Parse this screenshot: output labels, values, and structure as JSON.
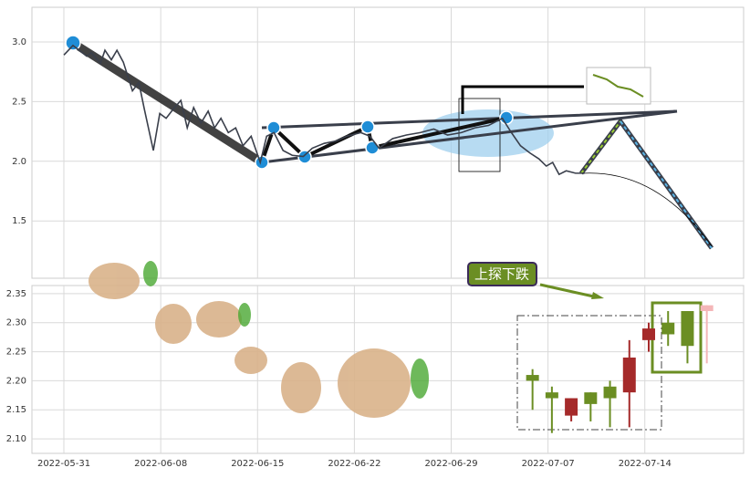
{
  "chart_data": [
    {
      "type": "line",
      "ylim": [
        1.02,
        3.29
      ],
      "yticks": [
        1.5,
        {
          "value": 2,
          "label": "2.0"
        },
        2.5,
        {
          "value": 3,
          "label": "3.0"
        }
      ],
      "grid": true,
      "series": [
        {
          "color": "#3a3f4b",
          "x": [
            0,
            0.47,
            1.18,
            1.42,
            1.89,
            2.12,
            2.45,
            2.74,
            3.07,
            3.54,
            3.87,
            4.15,
            4.62,
            4.95,
            5.28,
            5.66,
            6.04,
            6.37,
            6.7,
            7.08,
            7.45,
            7.78,
            8.11,
            8.49,
            8.87,
            9.25,
            9.67,
            10.14,
            10.47,
            10.85,
            11.32,
            11.79,
            12.36,
            12.83,
            13.44,
            14.06,
            14.62,
            15.33,
            15.8,
            16.27,
            16.98,
            17.69,
            18.4,
            19.1,
            19.81,
            20.52,
            21.23,
            21.93,
            22.64,
            23.11,
            23.58,
            24.06,
            24.53,
            24.91,
            25.24,
            25.57,
            25.94,
            26.42,
            26.89
          ],
          "values": [
            2.89,
            2.97,
            2.88,
            2.91,
            2.82,
            2.93,
            2.85,
            2.93,
            2.83,
            2.59,
            2.66,
            2.44,
            2.09,
            2.4,
            2.36,
            2.44,
            2.51,
            2.28,
            2.45,
            2.32,
            2.42,
            2.28,
            2.36,
            2.24,
            2.28,
            2.13,
            2.21,
            1.99,
            2.21,
            2.24,
            2.09,
            2.05,
            2.04,
            2.11,
            2.15,
            2.17,
            2.21,
            2.24,
            2.21,
            2.11,
            2.19,
            2.22,
            2.24,
            2.27,
            2.22,
            2.24,
            2.28,
            2.3,
            2.36,
            2.24,
            2.13,
            2.07,
            2.02,
            1.96,
            1.99,
            1.89,
            1.92,
            1.9,
            1.9
          ]
        }
      ]
    },
    {
      "type": "candlestick",
      "annotation": "上探下跌",
      "xlim": [
        -1.65,
        35.1
      ],
      "xticks": [
        {
          "value": 0,
          "label": "2022-05-31"
        },
        {
          "value": 5,
          "label": "2022-06-08"
        },
        {
          "value": 10,
          "label": "2022-06-15"
        },
        {
          "value": 15,
          "label": "2022-06-22"
        },
        {
          "value": 20,
          "label": "2022-06-29"
        },
        {
          "value": 25,
          "label": "2022-07-07"
        },
        {
          "value": 30,
          "label": "2022-07-14"
        }
      ],
      "ylim": [
        2.075,
        2.364
      ],
      "yticks": [
        {
          "value": 2.1,
          "label": "2.10"
        },
        2.15,
        {
          "value": 2.2,
          "label": "2.20"
        },
        2.25,
        {
          "value": 2.3,
          "label": "2.30"
        },
        2.35
      ],
      "grid": true,
      "up_color": "#a52a2a",
      "down_color": "#6b8e23",
      "forecast_color": "#f4b6b8",
      "x": [
        24.2,
        25.2,
        26.2,
        27.2,
        28.2,
        29.2,
        30.2,
        31.2,
        32.2,
        33.2
      ],
      "open": [
        2.21,
        2.18,
        2.14,
        2.18,
        2.19,
        2.18,
        2.27,
        2.3,
        2.32,
        2.32
      ],
      "high": [
        2.22,
        2.19,
        2.17,
        2.18,
        2.2,
        2.27,
        2.3,
        2.32,
        2.32,
        2.33
      ],
      "low": [
        2.15,
        2.11,
        2.13,
        2.13,
        2.12,
        2.12,
        2.25,
        2.26,
        2.23,
        2.23
      ],
      "close": [
        2.2,
        2.17,
        2.17,
        2.16,
        2.17,
        2.24,
        2.29,
        2.28,
        2.26,
        2.33
      ]
    }
  ]
}
